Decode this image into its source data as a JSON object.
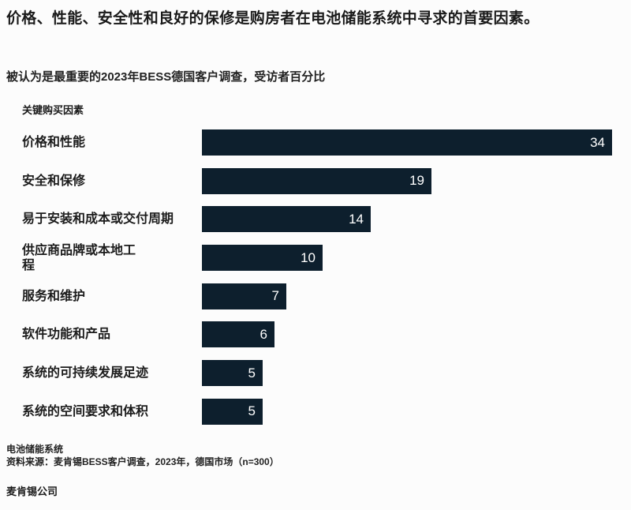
{
  "title": "价格、性能、安全性和良好的保修是购房者在电池储能系统中寻求的首要因素。",
  "subtitle": "被认为是最重要的2023年BESS德国客户调查，受访者百分比",
  "chart_data": {
    "type": "bar",
    "orientation": "horizontal",
    "title": "被认为是最重要的2023年BESS德国客户调查，受访者百分比",
    "xlabel": "受访者百分比",
    "ylabel": "关键购买因素",
    "axis_label": "关键购买因素",
    "categories": [
      "价格和性能",
      "安全和保修",
      "易于安装和成本或交付周期",
      "供应商品牌或本地工\n程",
      "服务和维护",
      "软件功能和产品",
      "系统的可持续发展足迹",
      "系统的空间要求和体积"
    ],
    "values": [
      34,
      19,
      14,
      10,
      7,
      6,
      5,
      5
    ],
    "xlim": [
      0,
      36
    ],
    "grid": false,
    "legend": "none",
    "bar_color": "#0d1f2d",
    "value_label_color": "#ffffff",
    "value_label_position": "inside-right"
  },
  "footer": {
    "note": "电池储能系统",
    "source": "资料来源：麦肯锡BESS客户调查，2023年，德国市场（n=300）",
    "brand": "麦肯锡公司"
  }
}
